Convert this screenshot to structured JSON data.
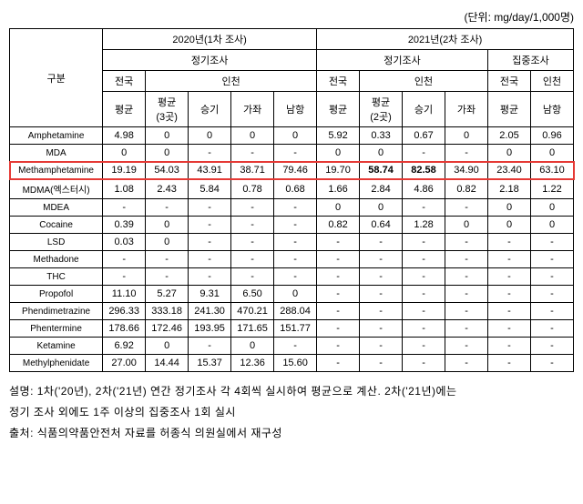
{
  "unit_label": "(단위: mg/day/1,000명)",
  "header": {
    "category": "구분",
    "y2020": "2020년(1차 조사)",
    "y2021": "2021년(2차 조사)",
    "regular": "정기조사",
    "intensive": "집중조사",
    "national": "전국",
    "incheon": "인천",
    "avg": "평균",
    "avg3": "평균\n(3곳)",
    "avg2": "평균\n(2곳)",
    "seunggi": "승기",
    "gajwa": "가좌",
    "namhang": "남항"
  },
  "rows": [
    {
      "name": "Amphetamine",
      "v": [
        "4.98",
        "0",
        "0",
        "0",
        "0",
        "5.92",
        "0.33",
        "0.67",
        "0",
        "2.05",
        "0.96"
      ]
    },
    {
      "name": "MDA",
      "v": [
        "0",
        "0",
        "-",
        "-",
        "-",
        "0",
        "0",
        "-",
        "-",
        "0",
        "0"
      ]
    },
    {
      "name": "Methamphetamine",
      "v": [
        "19.19",
        "54.03",
        "43.91",
        "38.71",
        "79.46",
        "19.70",
        "58.74",
        "82.58",
        "34.90",
        "23.40",
        "63.10"
      ],
      "highlight": true,
      "bold": [
        6,
        7
      ]
    },
    {
      "name": "MDMA(엑스터시)",
      "v": [
        "1.08",
        "2.43",
        "5.84",
        "0.78",
        "0.68",
        "1.66",
        "2.84",
        "4.86",
        "0.82",
        "2.18",
        "1.22"
      ]
    },
    {
      "name": "MDEA",
      "v": [
        "-",
        "-",
        "-",
        "-",
        "-",
        "0",
        "0",
        "-",
        "-",
        "0",
        "0"
      ]
    },
    {
      "name": "Cocaine",
      "v": [
        "0.39",
        "0",
        "-",
        "-",
        "-",
        "0.82",
        "0.64",
        "1.28",
        "0",
        "0",
        "0"
      ]
    },
    {
      "name": "LSD",
      "v": [
        "0.03",
        "0",
        "-",
        "-",
        "-",
        "-",
        "-",
        "-",
        "-",
        "-",
        "-"
      ]
    },
    {
      "name": "Methadone",
      "v": [
        "-",
        "-",
        "-",
        "-",
        "-",
        "-",
        "-",
        "-",
        "-",
        "-",
        "-"
      ]
    },
    {
      "name": "THC",
      "v": [
        "-",
        "-",
        "-",
        "-",
        "-",
        "-",
        "-",
        "-",
        "-",
        "-",
        "-"
      ]
    },
    {
      "name": "Propofol",
      "v": [
        "11.10",
        "5.27",
        "9.31",
        "6.50",
        "0",
        "-",
        "-",
        "-",
        "-",
        "-",
        "-"
      ]
    },
    {
      "name": "Phendimetrazine",
      "v": [
        "296.33",
        "333.18",
        "241.30",
        "470.21",
        "288.04",
        "-",
        "-",
        "-",
        "-",
        "-",
        "-"
      ]
    },
    {
      "name": "Phentermine",
      "v": [
        "178.66",
        "172.46",
        "193.95",
        "171.65",
        "151.77",
        "-",
        "-",
        "-",
        "-",
        "-",
        "-"
      ]
    },
    {
      "name": "Ketamine",
      "v": [
        "6.92",
        "0",
        "-",
        "0",
        "-",
        "-",
        "-",
        "-",
        "-",
        "-",
        "-"
      ]
    },
    {
      "name": "Methylphenidate",
      "v": [
        "27.00",
        "14.44",
        "15.37",
        "12.36",
        "15.60",
        "-",
        "-",
        "-",
        "-",
        "-",
        "-"
      ]
    }
  ],
  "notes": {
    "line1": "설명: 1차('20년), 2차('21년) 연간 정기조사 각 4회씩 실시하여 평균으로 계산. 2차('21년)에는",
    "line2": "정기 조사 외에도 1주 이상의 집중조사 1회 실시",
    "line3": "출처: 식품의약품안전처 자료를 허종식 의원실에서 재구성"
  }
}
